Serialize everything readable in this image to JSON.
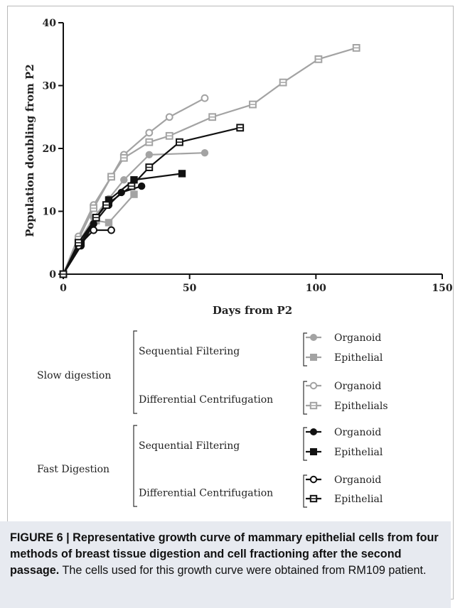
{
  "chart_data": {
    "type": "line",
    "xlabel": "Days from P2",
    "ylabel": "Population doubling from P2",
    "xlim": [
      0,
      150
    ],
    "ylim": [
      0,
      40
    ],
    "xticks": [
      0,
      50,
      100,
      150
    ],
    "yticks": [
      0,
      10,
      20,
      30,
      40
    ],
    "grid": false,
    "series": [
      {
        "name": "Organoid",
        "group": "Slow digestion",
        "method": "Sequential Filtering",
        "color": "#a3a3a3",
        "marker": "circle-filled",
        "x": [
          0,
          6,
          12,
          18,
          24,
          34,
          56
        ],
        "y": [
          0,
          5,
          9,
          12,
          15,
          19,
          19.3
        ]
      },
      {
        "name": "Epithelial",
        "group": "Slow digestion",
        "method": "Sequential Filtering",
        "color": "#a3a3a3",
        "marker": "square-filled",
        "x": [
          0,
          7,
          13,
          18,
          28
        ],
        "y": [
          0,
          5.5,
          8.5,
          8.2,
          12.7
        ]
      },
      {
        "name": "Organoid",
        "group": "Slow digestion",
        "method": "Differential Centrifugation",
        "color": "#a3a3a3",
        "marker": "circle-open",
        "x": [
          0,
          6,
          12,
          19,
          24,
          34,
          42,
          56
        ],
        "y": [
          0,
          6,
          11,
          15.5,
          19,
          22.5,
          25,
          28
        ]
      },
      {
        "name": "Epithelials",
        "group": "Slow digestion",
        "method": "Differential Centrifugation",
        "color": "#a3a3a3",
        "marker": "square-open",
        "x": [
          0,
          6,
          12,
          19,
          24,
          34,
          42,
          59,
          75,
          87,
          101,
          116
        ],
        "y": [
          0,
          5.5,
          10.5,
          15.5,
          18.5,
          21,
          22,
          25,
          27,
          30.5,
          34.2,
          36
        ]
      },
      {
        "name": "Organoid",
        "group": "Fast Digestion",
        "method": "Sequential Filtering",
        "color": "#111111",
        "marker": "circle-filled",
        "x": [
          0,
          7,
          12,
          18,
          23,
          31
        ],
        "y": [
          0,
          4.5,
          8,
          11,
          13,
          14
        ]
      },
      {
        "name": "Epithelial",
        "group": "Fast Digestion",
        "method": "Sequential Filtering",
        "color": "#111111",
        "marker": "square-filled",
        "x": [
          0,
          7,
          13,
          18,
          28,
          47
        ],
        "y": [
          0,
          5,
          9,
          11.8,
          15,
          16
        ]
      },
      {
        "name": "Organoid",
        "group": "Fast Digestion",
        "method": "Differential Centrifugation",
        "color": "#111111",
        "marker": "circle-open",
        "x": [
          0,
          6,
          12,
          19
        ],
        "y": [
          0,
          4.5,
          7,
          7
        ]
      },
      {
        "name": "Epithelial",
        "group": "Fast Digestion",
        "method": "Differential Centrifugation",
        "color": "#111111",
        "marker": "square-open",
        "x": [
          0,
          6,
          13,
          17,
          27,
          34,
          46,
          70
        ],
        "y": [
          0,
          5,
          9,
          11,
          14,
          17,
          21,
          23.3
        ]
      }
    ],
    "legend": {
      "placement": "bottom",
      "groups": [
        {
          "label": "Slow digestion",
          "methods": [
            {
              "label": "Sequential Filtering",
              "entries": [
                0,
                1
              ]
            },
            {
              "label": "Differential Centrifugation",
              "entries": [
                2,
                3
              ]
            }
          ]
        },
        {
          "label": "Fast Digestion",
          "methods": [
            {
              "label": "Sequential Filtering",
              "entries": [
                4,
                5
              ]
            },
            {
              "label": "Differential Centrifugation",
              "entries": [
                6,
                7
              ]
            }
          ]
        }
      ]
    }
  },
  "caption": {
    "bold": "FIGURE 6 | Representative growth curve of mammary epithelial cells from four methods of breast tissue digestion and cell fractioning after the second passage.",
    "text": " The cells used for this growth curve were obtained from RM109 patient."
  }
}
